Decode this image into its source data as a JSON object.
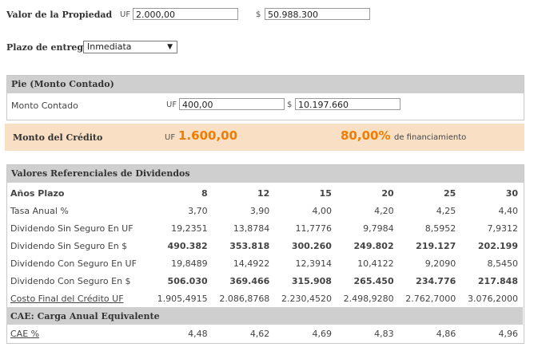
{
  "property": {
    "label": "Valor de la Propiedad",
    "uf_prefix": "UF",
    "uf_value": "2.000,00",
    "clp_prefix": "$",
    "clp_value": "50.988.300"
  },
  "delivery": {
    "label": "Plazo de entrega",
    "selected": "Inmediata"
  },
  "pie": {
    "title": "Pie (Monto Contado)",
    "label": "Monto Contado",
    "uf_prefix": "UF",
    "uf_value": "400,00",
    "clp_prefix": "$",
    "clp_value": "10.197.660"
  },
  "credit": {
    "label": "Monto del Crédito",
    "uf_prefix": "UF",
    "uf_value": "1.600,00",
    "percent": "80,00%",
    "percent_suffix": "de financiamiento"
  },
  "dividends": {
    "title": "Valores Referenciales de Dividendos",
    "header_label": "Años Plazo",
    "years": [
      "8",
      "12",
      "15",
      "20",
      "25",
      "30"
    ],
    "rows": [
      {
        "label": "Tasa Anual %",
        "values": [
          "3,70",
          "3,90",
          "4,00",
          "4,20",
          "4,25",
          "4,40"
        ]
      },
      {
        "label": "Dividendo Sin Seguro En UF",
        "values": [
          "19,2351",
          "13,8784",
          "11,7776",
          "9,7984",
          "8,5952",
          "7,9312"
        ]
      },
      {
        "label": "Dividendo Sin Seguro En $",
        "values": [
          "490.382",
          "353.818",
          "300.260",
          "249.802",
          "219.127",
          "202.199"
        ]
      },
      {
        "label": "Dividendo Con Seguro En UF",
        "values": [
          "19,8489",
          "14,4922",
          "12,3914",
          "10,4122",
          "9,2090",
          "8,5450"
        ]
      },
      {
        "label": "Dividendo Con Seguro En $",
        "values": [
          "506.030",
          "369.466",
          "315.908",
          "265.450",
          "234.776",
          "217.848"
        ]
      },
      {
        "label": "Costo Final del Crédito UF",
        "values": [
          "1.905,4915",
          "2.086,8768",
          "2.230,4520",
          "2.498,9280",
          "2.762,7000",
          "3.076,2000"
        ]
      }
    ]
  },
  "cae": {
    "title": "CAE: Carga Anual Equivalente",
    "label": "CAE %",
    "values": [
      "4,48",
      "4,62",
      "4,69",
      "4,83",
      "4,86",
      "4,96"
    ]
  },
  "colors": {
    "accent_orange": "#f07d00",
    "credit_bg": "#f9dfc3",
    "header_gray": "#cfcfcf"
  }
}
